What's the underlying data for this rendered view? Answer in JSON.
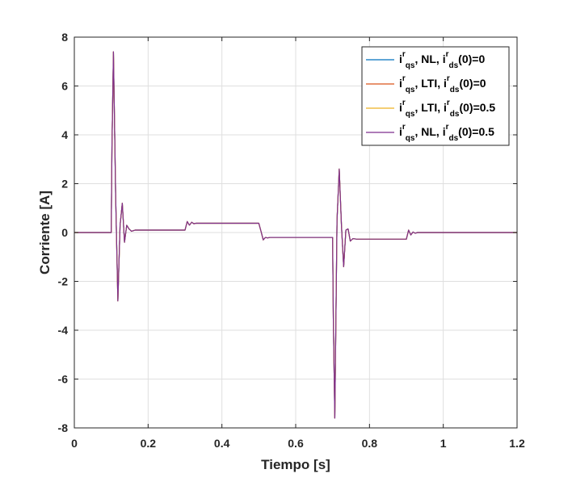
{
  "chart_data": {
    "type": "line",
    "title": "",
    "xlabel": "Tiempo [s]",
    "ylabel": "Corriente [A]",
    "xlim": [
      0,
      1.2
    ],
    "ylim": [
      -8,
      8
    ],
    "xticks": [
      0,
      0.2,
      0.4,
      0.6,
      0.8,
      1,
      1.2
    ],
    "xtick_labels": [
      "0",
      "0.2",
      "0.4",
      "0.6",
      "0.8",
      "1",
      "1.2"
    ],
    "yticks": [
      -8,
      -6,
      -4,
      -2,
      0,
      2,
      4,
      6,
      8
    ],
    "ytick_labels": [
      "-8",
      "-6",
      "-4",
      "-2",
      "0",
      "2",
      "4",
      "6",
      "8"
    ],
    "grid": true,
    "legend_position": "top-right",
    "series": [
      {
        "name": "i^r_qs, NL, i^r_ds(0)=0",
        "label": {
          "base": "i",
          "sup": "r",
          "sub": "qs",
          "mid": ", NL, ",
          "base2": "i",
          "sup2": "r",
          "sub2": "ds",
          "tail": "(0)=0"
        },
        "color": "#0072BD",
        "x": [
          0,
          0.1,
          0.102,
          0.106,
          0.112,
          0.118,
          0.124,
          0.13,
          0.136,
          0.142,
          0.148,
          0.155,
          0.165,
          0.18,
          0.3,
          0.306,
          0.312,
          0.318,
          0.324,
          0.33,
          0.34,
          0.5,
          0.506,
          0.512,
          0.518,
          0.524,
          0.53,
          0.54,
          0.7,
          0.702,
          0.706,
          0.712,
          0.718,
          0.724,
          0.73,
          0.736,
          0.742,
          0.748,
          0.755,
          0.765,
          0.78,
          0.9,
          0.906,
          0.912,
          0.918,
          0.924,
          0.93,
          0.94,
          1.2
        ],
        "y": [
          0,
          0,
          3.5,
          7.4,
          1.5,
          -2.8,
          0.3,
          1.2,
          -0.4,
          0.3,
          0.15,
          0.05,
          0.1,
          0.1,
          0.1,
          0.45,
          0.3,
          0.42,
          0.36,
          0.38,
          0.38,
          0.38,
          0.05,
          -0.3,
          -0.2,
          -0.22,
          -0.2,
          -0.2,
          -0.2,
          -3.5,
          -7.6,
          0.5,
          2.6,
          0.3,
          -1.4,
          0.1,
          0.15,
          -0.35,
          -0.25,
          -0.27,
          -0.27,
          -0.27,
          0.1,
          -0.1,
          0.02,
          -0.03,
          0,
          0,
          0
        ]
      },
      {
        "name": "i^r_qs, LTI, i^r_ds(0)=0",
        "label": {
          "base": "i",
          "sup": "r",
          "sub": "qs",
          "mid": ", LTI, ",
          "base2": "i",
          "sup2": "r",
          "sub2": "ds",
          "tail": "(0)=0"
        },
        "color": "#D95319",
        "x": [
          0,
          0.1,
          0.102,
          0.106,
          0.112,
          0.118,
          0.124,
          0.13,
          0.136,
          0.142,
          0.148,
          0.155,
          0.165,
          0.18,
          0.3,
          0.306,
          0.312,
          0.318,
          0.324,
          0.33,
          0.34,
          0.5,
          0.506,
          0.512,
          0.518,
          0.524,
          0.53,
          0.54,
          0.7,
          0.702,
          0.706,
          0.712,
          0.718,
          0.724,
          0.73,
          0.736,
          0.742,
          0.748,
          0.755,
          0.765,
          0.78,
          0.9,
          0.906,
          0.912,
          0.918,
          0.924,
          0.93,
          0.94,
          1.2
        ],
        "y": [
          0,
          0,
          3.5,
          7.4,
          1.5,
          -2.8,
          0.3,
          1.2,
          -0.4,
          0.3,
          0.15,
          0.05,
          0.1,
          0.1,
          0.1,
          0.45,
          0.3,
          0.42,
          0.36,
          0.38,
          0.38,
          0.38,
          0.05,
          -0.3,
          -0.2,
          -0.22,
          -0.2,
          -0.2,
          -0.2,
          -3.5,
          -7.6,
          0.5,
          2.6,
          0.3,
          -1.4,
          0.1,
          0.15,
          -0.35,
          -0.25,
          -0.27,
          -0.27,
          -0.27,
          0.1,
          -0.1,
          0.02,
          -0.03,
          0,
          0,
          0
        ]
      },
      {
        "name": "i^r_qs, LTI, i^r_ds(0)=0.5",
        "label": {
          "base": "i",
          "sup": "r",
          "sub": "qs",
          "mid": ", LTI, ",
          "base2": "i",
          "sup2": "r",
          "sub2": "ds",
          "tail": "(0)=0.5"
        },
        "color": "#EDB120",
        "x": [
          0,
          0.1,
          0.102,
          0.106,
          0.112,
          0.118,
          0.124,
          0.13,
          0.136,
          0.142,
          0.148,
          0.155,
          0.165,
          0.18,
          0.3,
          0.306,
          0.312,
          0.318,
          0.324,
          0.33,
          0.34,
          0.5,
          0.506,
          0.512,
          0.518,
          0.524,
          0.53,
          0.54,
          0.7,
          0.702,
          0.706,
          0.712,
          0.718,
          0.724,
          0.73,
          0.736,
          0.742,
          0.748,
          0.755,
          0.765,
          0.78,
          0.9,
          0.906,
          0.912,
          0.918,
          0.924,
          0.93,
          0.94,
          1.2
        ],
        "y": [
          0,
          0,
          3.5,
          7.4,
          1.5,
          -2.8,
          0.3,
          1.2,
          -0.4,
          0.3,
          0.15,
          0.05,
          0.1,
          0.1,
          0.1,
          0.45,
          0.3,
          0.42,
          0.36,
          0.38,
          0.38,
          0.38,
          0.05,
          -0.3,
          -0.2,
          -0.22,
          -0.2,
          -0.2,
          -0.2,
          -3.5,
          -7.6,
          0.5,
          2.6,
          0.3,
          -1.4,
          0.1,
          0.15,
          -0.35,
          -0.25,
          -0.27,
          -0.27,
          -0.27,
          0.1,
          -0.1,
          0.02,
          -0.03,
          0,
          0,
          0
        ]
      },
      {
        "name": "i^r_qs, NL, i^r_ds(0)=0.5",
        "label": {
          "base": "i",
          "sup": "r",
          "sub": "qs",
          "mid": ", NL, ",
          "base2": "i",
          "sup2": "r",
          "sub2": "ds",
          "tail": "(0)=0.5"
        },
        "color": "#7E2F8E",
        "x": [
          0,
          0.1,
          0.102,
          0.106,
          0.112,
          0.118,
          0.124,
          0.13,
          0.136,
          0.142,
          0.148,
          0.155,
          0.165,
          0.18,
          0.3,
          0.306,
          0.312,
          0.318,
          0.324,
          0.33,
          0.34,
          0.5,
          0.506,
          0.512,
          0.518,
          0.524,
          0.53,
          0.54,
          0.7,
          0.702,
          0.706,
          0.712,
          0.718,
          0.724,
          0.73,
          0.736,
          0.742,
          0.748,
          0.755,
          0.765,
          0.78,
          0.9,
          0.906,
          0.912,
          0.918,
          0.924,
          0.93,
          0.94,
          1.2
        ],
        "y": [
          0,
          0,
          3.5,
          7.4,
          1.5,
          -2.8,
          0.3,
          1.2,
          -0.4,
          0.3,
          0.15,
          0.05,
          0.1,
          0.1,
          0.1,
          0.45,
          0.3,
          0.42,
          0.36,
          0.38,
          0.38,
          0.38,
          0.05,
          -0.3,
          -0.2,
          -0.22,
          -0.2,
          -0.2,
          -0.2,
          -3.5,
          -7.6,
          0.5,
          2.6,
          0.3,
          -1.4,
          0.1,
          0.15,
          -0.35,
          -0.25,
          -0.27,
          -0.27,
          -0.27,
          0.1,
          -0.1,
          0.02,
          -0.03,
          0,
          0,
          0
        ]
      }
    ]
  }
}
